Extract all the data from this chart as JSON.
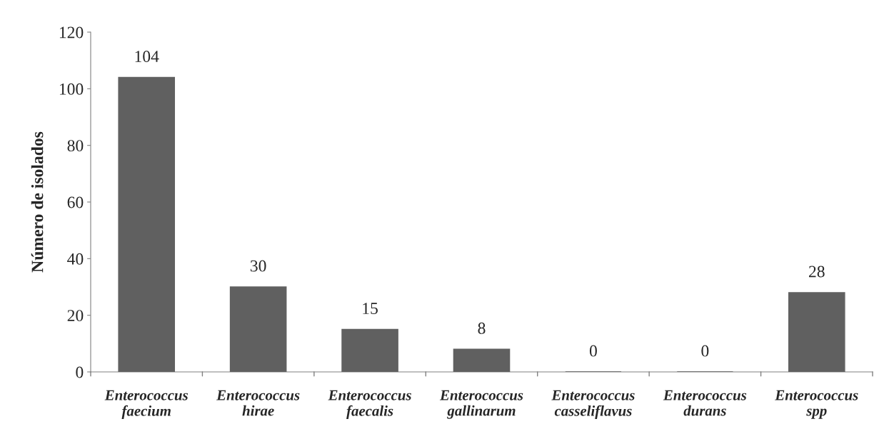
{
  "chart_data": {
    "type": "bar",
    "ylabel": "Número de isolados",
    "categories": [
      "Enterococcus\nfaecium",
      "Enterococcus\nhirae",
      "Enterococcus\nfaecalis",
      "Enterococcus\ngallinarum",
      "Enterococcus\ncasseliflavus",
      "Enterococcus\ndurans",
      "Enterococcus\nspp"
    ],
    "values": [
      104,
      30,
      15,
      8,
      0,
      0,
      28
    ],
    "color": "#606060",
    "ylim": [
      0,
      120
    ],
    "yticks": [
      0,
      20,
      40,
      60,
      80,
      100,
      120
    ],
    "data_labels": true,
    "grid": false,
    "legend": false
  }
}
